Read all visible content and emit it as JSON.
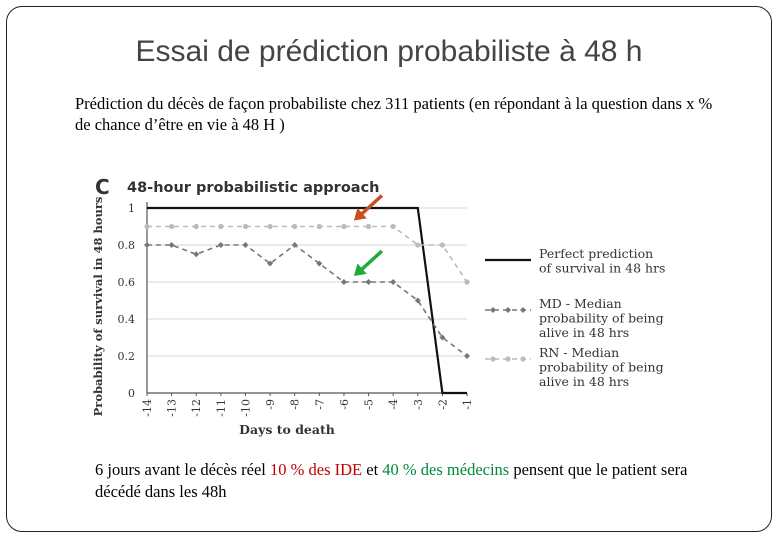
{
  "slide": {
    "title": "Essai de prédiction probabiliste à 48 h",
    "subtitle": "Prédiction du décès de façon probabiliste chez 311 patients (en répondant à la question dans x % de chance d’être en vie à 48 H )",
    "caption": {
      "part1": "6 jours avant le décès réel ",
      "red": "10 % des IDE",
      "part2": " et ",
      "green": "40 % des médecins",
      "part3": " pensent que le patient sera décédé dans les 48h"
    }
  },
  "colors": {
    "red_text": "#c00000",
    "green_text": "#00893a",
    "orange_arrow": "#c8501e",
    "green_arrow": "#1faa3c"
  },
  "chart_data": {
    "type": "line",
    "panel_letter": "C",
    "title": "48-hour probabilistic approach",
    "xlabel": "Days to death",
    "ylabel": "Probability of survival in 48 hours",
    "x": [
      -14,
      -13,
      -12,
      -11,
      -10,
      -9,
      -8,
      -7,
      -6,
      -5,
      -4,
      -3,
      -2,
      -1
    ],
    "xticks": [
      "-14",
      "-13",
      "-12",
      "-11",
      "-10",
      "-9",
      "-8",
      "-7",
      "-6",
      "-5",
      "-4",
      "-3",
      "-2",
      "-1"
    ],
    "yticks": [
      "0",
      "0.2",
      "0.4",
      "0.6",
      "0.8",
      "1"
    ],
    "ylim": [
      0,
      1
    ],
    "grid": true,
    "legend_position": "right",
    "series": [
      {
        "name": "Perfect prediction of survival in 48 hrs",
        "style": "solid",
        "color": "#111111",
        "points": [
          [
            -14,
            1
          ],
          [
            -3,
            1
          ],
          [
            -2,
            0
          ],
          [
            -1,
            0
          ]
        ]
      },
      {
        "name": "MD - Median probability of being alive in 48 hrs",
        "style": "dashed",
        "color": "#777777",
        "values": [
          0.8,
          0.8,
          0.75,
          0.8,
          0.8,
          0.7,
          0.8,
          0.7,
          0.6,
          0.6,
          0.6,
          0.5,
          0.3,
          0.2
        ]
      },
      {
        "name": "RN - Median probability of being alive in 48 hrs",
        "style": "dashed",
        "color": "#bbbbbb",
        "values": [
          0.9,
          0.9,
          0.9,
          0.9,
          0.9,
          0.9,
          0.9,
          0.9,
          0.9,
          0.9,
          0.9,
          0.8,
          0.8,
          0.6
        ]
      }
    ],
    "legend": [
      {
        "lines": [
          "Perfect prediction",
          "of survival in 48 hrs"
        ]
      },
      {
        "lines": [
          "MD - Median",
          "probability of being",
          "alive in 48 hrs"
        ]
      },
      {
        "lines": [
          "RN - Median",
          "probability of being",
          "alive in 48 hrs"
        ]
      }
    ],
    "annotations": [
      {
        "kind": "arrow",
        "color": "orange",
        "points_to": {
          "x": -6,
          "series": "RN"
        }
      },
      {
        "kind": "arrow",
        "color": "green",
        "points_to": {
          "x": -6,
          "series": "MD"
        }
      }
    ]
  }
}
